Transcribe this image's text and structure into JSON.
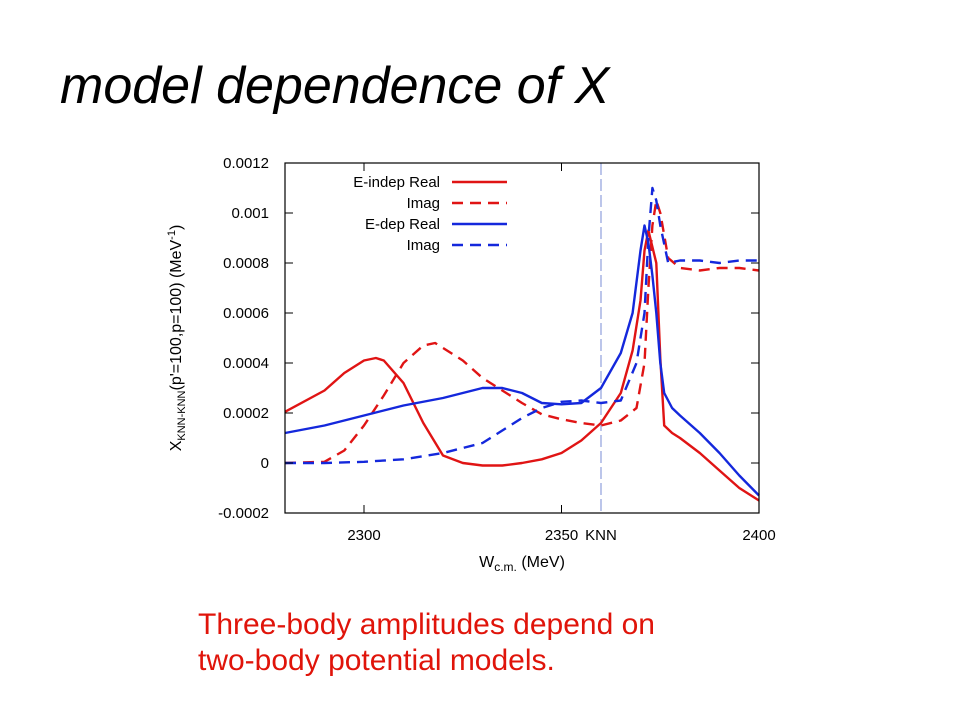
{
  "slide": {
    "title": "model dependence of X",
    "caption_lines": [
      "Three-body amplitudes depend on",
      "two-body potential models."
    ],
    "caption_color": "#e0140a"
  },
  "chart_data": {
    "type": "line",
    "title": "",
    "xlabel_main": "W",
    "xlabel_sub": "c.m.",
    "xlabel_unit": " (MeV)",
    "ylabel_main": "X",
    "ylabel_sub": "KNN-KNN",
    "ylabel_args": "(p'=100,p=100) (MeV",
    "ylabel_sup": "-1",
    "ylabel_close": ")",
    "xlim": [
      2280,
      2400
    ],
    "ylim": [
      -0.0002,
      0.0012
    ],
    "xticks": [
      2300,
      2350,
      2400
    ],
    "xtick_labels": [
      "2300",
      "2350",
      "2400"
    ],
    "yticks": [
      -0.0002,
      0,
      0.0002,
      0.0004,
      0.0006,
      0.0008,
      0.001,
      0.0012
    ],
    "ytick_labels": [
      "-0.0002",
      "0",
      "0.0002",
      "0.0004",
      "0.0006",
      "0.0008",
      "0.001",
      "0.0012"
    ],
    "threshold": {
      "x": 2360,
      "label": "KNN",
      "color": "#8f9fdc"
    },
    "grid": false,
    "legend_position": "top-left",
    "series": [
      {
        "name": "E-indep Real",
        "color": "#e01414",
        "dash": "solid",
        "points": [
          [
            2280,
            0.000205
          ],
          [
            2290,
            0.00029
          ],
          [
            2295,
            0.00036
          ],
          [
            2300,
            0.00041
          ],
          [
            2303,
            0.00042
          ],
          [
            2305,
            0.00041
          ],
          [
            2310,
            0.00032
          ],
          [
            2315,
            0.00016
          ],
          [
            2320,
            3e-05
          ],
          [
            2325,
            0.0
          ],
          [
            2330,
            -1e-05
          ],
          [
            2335,
            -1e-05
          ],
          [
            2340,
            0.0
          ],
          [
            2345,
            1.5e-05
          ],
          [
            2350,
            4e-05
          ],
          [
            2355,
            9e-05
          ],
          [
            2360,
            0.00016
          ],
          [
            2365,
            0.00028
          ],
          [
            2368,
            0.00045
          ],
          [
            2370,
            0.00065
          ],
          [
            2371,
            0.00085
          ],
          [
            2372,
            0.00093
          ],
          [
            2374,
            0.0008
          ],
          [
            2375,
            0.00042
          ],
          [
            2376,
            0.00015
          ],
          [
            2378,
            0.00012
          ],
          [
            2380,
            0.0001
          ],
          [
            2385,
            4e-05
          ],
          [
            2390,
            -3e-05
          ],
          [
            2395,
            -0.0001
          ],
          [
            2400,
            -0.00015
          ]
        ]
      },
      {
        "name": "Imag",
        "color": "#e01414",
        "dash": "dashed",
        "points": [
          [
            2280,
            0.0
          ],
          [
            2290,
            5e-06
          ],
          [
            2295,
            5e-05
          ],
          [
            2300,
            0.00015
          ],
          [
            2305,
            0.00027
          ],
          [
            2310,
            0.0004
          ],
          [
            2315,
            0.00047
          ],
          [
            2318,
            0.00048
          ],
          [
            2320,
            0.00046
          ],
          [
            2325,
            0.00041
          ],
          [
            2330,
            0.00034
          ],
          [
            2335,
            0.00029
          ],
          [
            2340,
            0.00024
          ],
          [
            2345,
            0.000195
          ],
          [
            2350,
            0.000175
          ],
          [
            2355,
            0.00016
          ],
          [
            2360,
            0.00015
          ],
          [
            2365,
            0.00017
          ],
          [
            2369,
            0.00022
          ],
          [
            2371,
            0.0004
          ],
          [
            2372,
            0.0007
          ],
          [
            2373,
            0.00095
          ],
          [
            2374,
            0.00105
          ],
          [
            2375,
            0.001
          ],
          [
            2377,
            0.00082
          ],
          [
            2380,
            0.00078
          ],
          [
            2385,
            0.00077
          ],
          [
            2390,
            0.00078
          ],
          [
            2395,
            0.00078
          ],
          [
            2400,
            0.00077
          ]
        ]
      },
      {
        "name": "E-dep Real",
        "color": "#1428dc",
        "dash": "solid",
        "points": [
          [
            2280,
            0.00012
          ],
          [
            2290,
            0.00015
          ],
          [
            2300,
            0.00019
          ],
          [
            2310,
            0.00023
          ],
          [
            2320,
            0.00026
          ],
          [
            2330,
            0.0003
          ],
          [
            2335,
            0.0003
          ],
          [
            2340,
            0.00028
          ],
          [
            2345,
            0.00024
          ],
          [
            2350,
            0.000235
          ],
          [
            2355,
            0.00024
          ],
          [
            2360,
            0.0003
          ],
          [
            2365,
            0.00044
          ],
          [
            2368,
            0.0006
          ],
          [
            2370,
            0.00085
          ],
          [
            2371,
            0.00095
          ],
          [
            2372,
            0.00088
          ],
          [
            2373,
            0.00075
          ],
          [
            2374,
            0.0006
          ],
          [
            2375,
            0.0004
          ],
          [
            2376,
            0.00028
          ],
          [
            2378,
            0.00022
          ],
          [
            2380,
            0.00019
          ],
          [
            2385,
            0.00012
          ],
          [
            2390,
            4e-05
          ],
          [
            2395,
            -5e-05
          ],
          [
            2400,
            -0.00013
          ]
        ]
      },
      {
        "name": "Imag",
        "color": "#1428dc",
        "dash": "dashed",
        "points": [
          [
            2280,
            0.0
          ],
          [
            2290,
            0.0
          ],
          [
            2300,
            5e-06
          ],
          [
            2310,
            1.5e-05
          ],
          [
            2320,
            4e-05
          ],
          [
            2330,
            8e-05
          ],
          [
            2335,
            0.00013
          ],
          [
            2340,
            0.00018
          ],
          [
            2345,
            0.00022
          ],
          [
            2350,
            0.000245
          ],
          [
            2355,
            0.00025
          ],
          [
            2360,
            0.00024
          ],
          [
            2365,
            0.00025
          ],
          [
            2369,
            0.0004
          ],
          [
            2371,
            0.0006
          ],
          [
            2372,
            0.0009
          ],
          [
            2373,
            0.0011
          ],
          [
            2374,
            0.00105
          ],
          [
            2375,
            0.00095
          ],
          [
            2377,
            0.0008
          ],
          [
            2380,
            0.00081
          ],
          [
            2385,
            0.00081
          ],
          [
            2390,
            0.0008
          ],
          [
            2395,
            0.00081
          ],
          [
            2400,
            0.00081
          ]
        ]
      }
    ]
  }
}
